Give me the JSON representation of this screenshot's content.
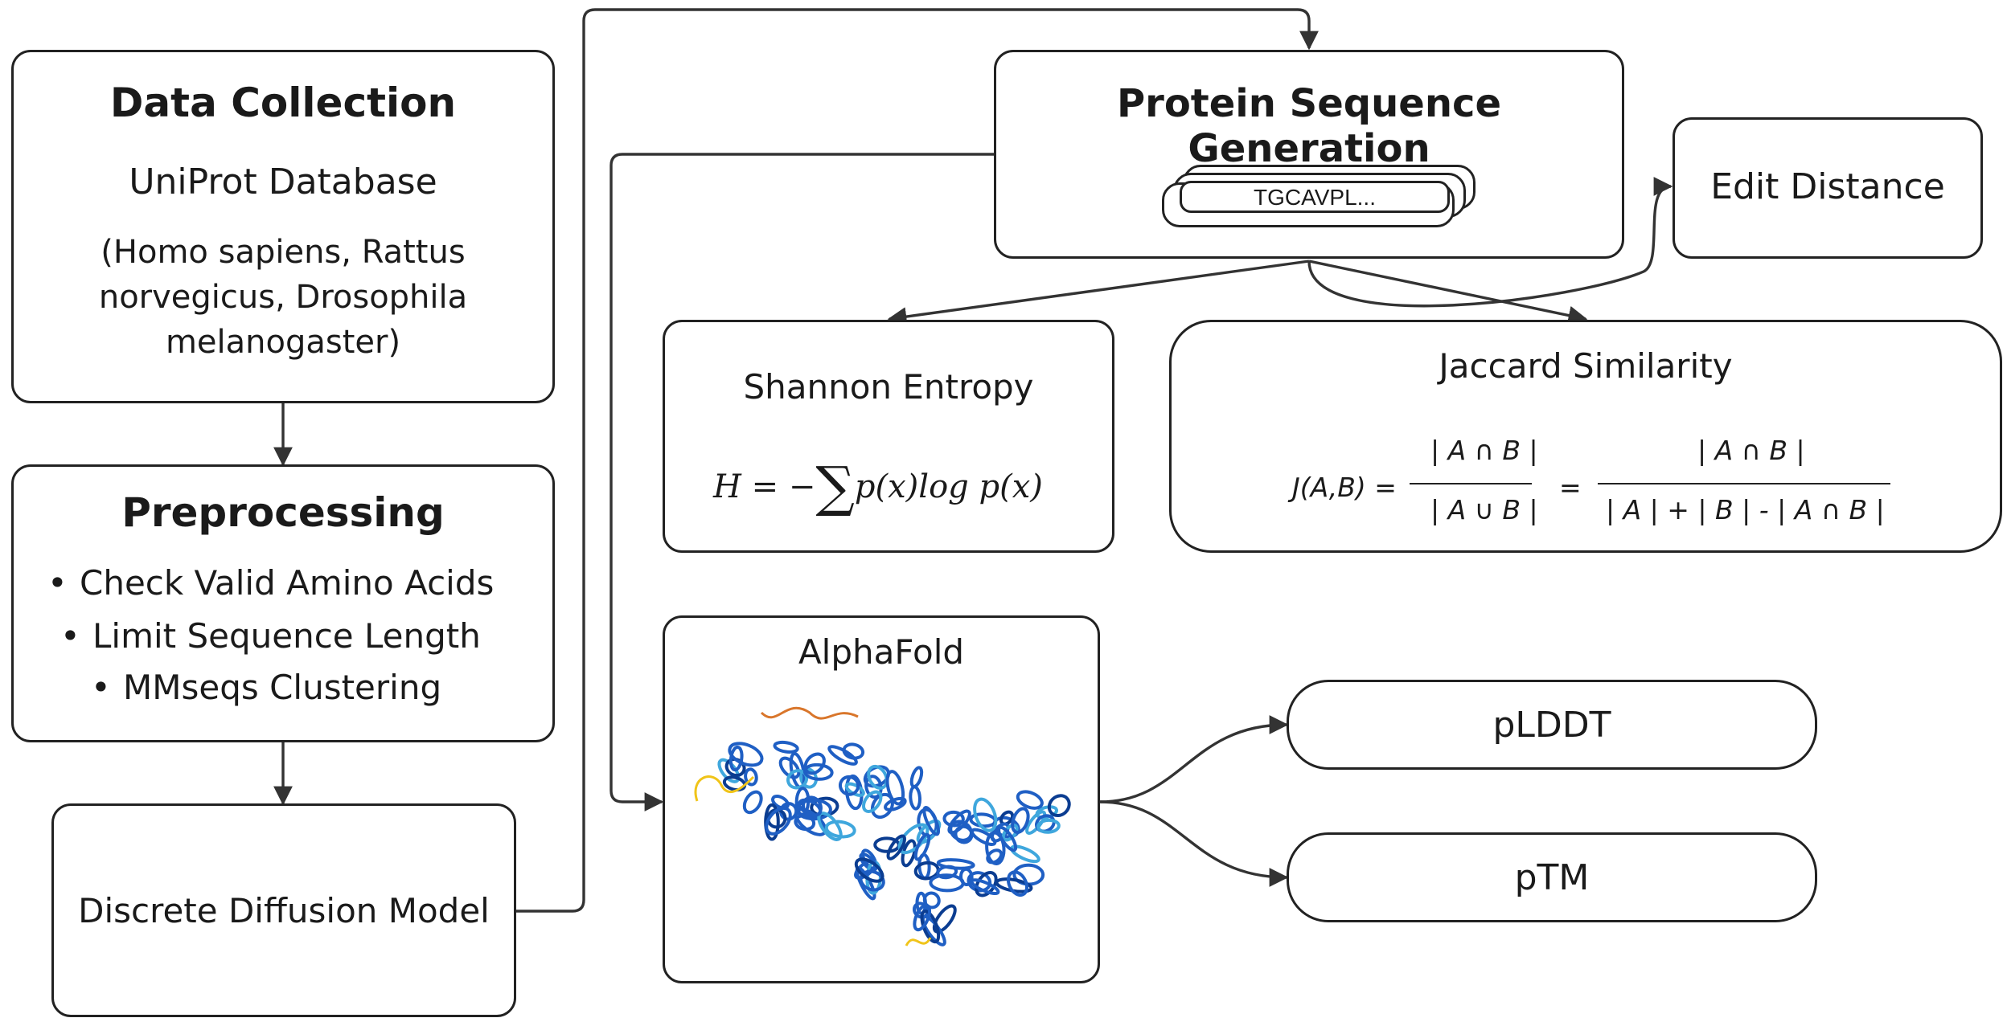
{
  "data_collection": {
    "title": "Data Collection",
    "source": "UniProt Database",
    "species_lines": [
      "(Homo sapiens, Rattus",
      "norvegicus, Drosophila",
      "melanogaster)"
    ]
  },
  "preprocessing": {
    "title": "Preprocessing",
    "bullet": "•",
    "steps": [
      "Check Valid Amino Acids",
      "Limit Sequence Length",
      "MMseqs Clustering"
    ]
  },
  "model": {
    "label": "Discrete Diffusion Model"
  },
  "generation": {
    "title": "Protein Sequence Generation",
    "sequence": "TGCAVPL..."
  },
  "edit_distance": {
    "label": "Edit Distance"
  },
  "shannon": {
    "title": "Shannon Entropy",
    "formula": {
      "lhs": "H",
      "eq": "=",
      "minus": "−",
      "sigma": "∑",
      "body": "p(x)log p(x)"
    }
  },
  "jaccard": {
    "title": "Jaccard Similarity",
    "lhs": "J(A,B) =",
    "num1": "| A ∩ B |",
    "den1": "| A ∪ B |",
    "eq": "=",
    "num2": "| A ∩ B |",
    "den2": "| A | + | B |   -   | A ∩ B |"
  },
  "alphafold": {
    "title": "AlphaFold",
    "colors": [
      "#0b3d91",
      "#1f5fc4",
      "#3fa7dd",
      "#f0c419",
      "#d9762b"
    ]
  },
  "plddt": {
    "label": "pLDDT"
  },
  "ptm": {
    "label": "pTM"
  }
}
